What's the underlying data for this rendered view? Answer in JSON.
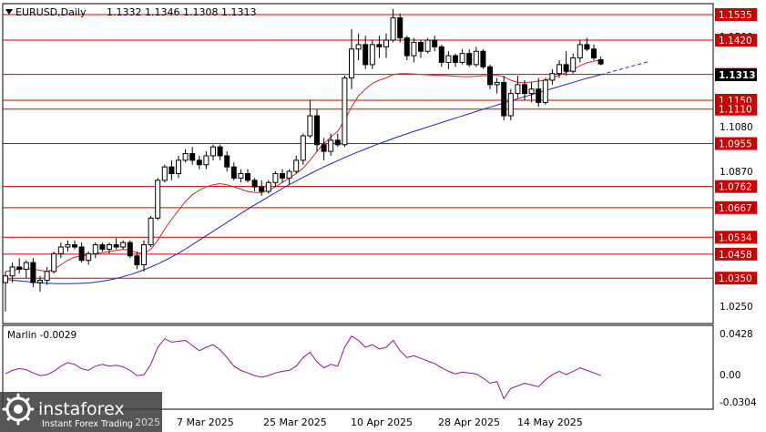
{
  "header": {
    "symbol": "EURUSD,Daily",
    "ohlc": "1.1332 1.1346 1.1308 1.1313"
  },
  "colors": {
    "level_line": "#d10000",
    "level_tag": "#d10000",
    "price_tag": "#000000",
    "ma_slow": "#1f2aa8",
    "ma_fast": "#cc2d2d",
    "oscillator": "#8c1a8c",
    "candle": "#000000",
    "grid_frame": "#000000"
  },
  "price_axis": {
    "ticks": [
      "1.1500",
      "1.1080",
      "1.0870",
      "1.0250"
    ]
  },
  "levels": [
    "1.1535",
    "1.1420",
    "1.1266",
    "1.1150",
    "1.1110",
    "1.0955",
    "1.0762",
    "1.0667",
    "1.0534",
    "1.0458",
    "1.0350"
  ],
  "current_price": "1.1313",
  "date_axis": {
    "labels": [
      "7 Mar 2025",
      "25 Mar 2025",
      "10 Apr 2025",
      "28 Apr 2025",
      "14 May 2025"
    ]
  },
  "oscillator": {
    "label": "Marlin -0.0029",
    "ticks": [
      "0.0428",
      "0.00",
      "-0.0304"
    ]
  },
  "watermark": {
    "brand": "instaforex",
    "tagline": "Instant Forex Trading",
    "partial_text": "2025"
  },
  "chart_data": {
    "type": "candlestick",
    "title": "EURUSD,Daily",
    "ylim": [
      1.015,
      1.158
    ],
    "candles": [
      [
        1.033,
        1.038,
        1.02,
        1.036
      ],
      [
        1.036,
        1.042,
        1.033,
        1.04
      ],
      [
        1.04,
        1.044,
        1.037,
        1.039
      ],
      [
        1.039,
        1.043,
        1.035,
        1.042
      ],
      [
        1.042,
        1.044,
        1.031,
        1.033
      ],
      [
        1.033,
        1.036,
        1.029,
        1.034
      ],
      [
        1.034,
        1.04,
        1.032,
        1.038
      ],
      [
        1.038,
        1.047,
        1.037,
        1.046
      ],
      [
        1.046,
        1.051,
        1.044,
        1.049
      ],
      [
        1.049,
        1.052,
        1.047,
        1.05
      ],
      [
        1.05,
        1.052,
        1.048,
        1.049
      ],
      [
        1.049,
        1.051,
        1.042,
        1.043
      ],
      [
        1.043,
        1.047,
        1.041,
        1.046
      ],
      [
        1.046,
        1.051,
        1.044,
        1.05
      ],
      [
        1.05,
        1.051,
        1.047,
        1.048
      ],
      [
        1.048,
        1.051,
        1.046,
        1.05
      ],
      [
        1.05,
        1.053,
        1.048,
        1.049
      ],
      [
        1.049,
        1.052,
        1.048,
        1.051
      ],
      [
        1.051,
        1.052,
        1.044,
        1.045
      ],
      [
        1.045,
        1.047,
        1.039,
        1.041
      ],
      [
        1.041,
        1.052,
        1.038,
        1.05
      ],
      [
        1.05,
        1.063,
        1.049,
        1.062
      ],
      [
        1.062,
        1.08,
        1.061,
        1.079
      ],
      [
        1.079,
        1.086,
        1.078,
        1.085
      ],
      [
        1.085,
        1.088,
        1.079,
        1.082
      ],
      [
        1.082,
        1.09,
        1.08,
        1.088
      ],
      [
        1.088,
        1.093,
        1.087,
        1.091
      ],
      [
        1.091,
        1.094,
        1.086,
        1.088
      ],
      [
        1.088,
        1.09,
        1.084,
        1.086
      ],
      [
        1.086,
        1.092,
        1.084,
        1.09
      ],
      [
        1.09,
        1.095,
        1.088,
        1.094
      ],
      [
        1.094,
        1.095,
        1.088,
        1.09
      ],
      [
        1.09,
        1.092,
        1.083,
        1.085
      ],
      [
        1.085,
        1.087,
        1.079,
        1.08
      ],
      [
        1.08,
        1.084,
        1.078,
        1.082
      ],
      [
        1.082,
        1.084,
        1.078,
        1.079
      ],
      [
        1.079,
        1.08,
        1.074,
        1.076
      ],
      [
        1.076,
        1.079,
        1.072,
        1.074
      ],
      [
        1.074,
        1.079,
        1.073,
        1.078
      ],
      [
        1.078,
        1.083,
        1.076,
        1.082
      ],
      [
        1.082,
        1.084,
        1.078,
        1.08
      ],
      [
        1.08,
        1.084,
        1.077,
        1.083
      ],
      [
        1.083,
        1.09,
        1.082,
        1.088
      ],
      [
        1.088,
        1.1,
        1.086,
        1.099
      ],
      [
        1.099,
        1.115,
        1.098,
        1.108
      ],
      [
        1.108,
        1.111,
        1.092,
        1.095
      ],
      [
        1.095,
        1.098,
        1.088,
        1.092
      ],
      [
        1.092,
        1.1,
        1.09,
        1.097
      ],
      [
        1.097,
        1.1,
        1.094,
        1.095
      ],
      [
        1.095,
        1.126,
        1.094,
        1.125
      ],
      [
        1.125,
        1.147,
        1.12,
        1.138
      ],
      [
        1.138,
        1.145,
        1.133,
        1.14
      ],
      [
        1.14,
        1.144,
        1.129,
        1.131
      ],
      [
        1.131,
        1.142,
        1.129,
        1.14
      ],
      [
        1.14,
        1.144,
        1.134,
        1.139
      ],
      [
        1.139,
        1.145,
        1.134,
        1.142
      ],
      [
        1.142,
        1.156,
        1.141,
        1.152
      ],
      [
        1.152,
        1.154,
        1.141,
        1.143
      ],
      [
        1.143,
        1.144,
        1.133,
        1.135
      ],
      [
        1.135,
        1.143,
        1.132,
        1.141
      ],
      [
        1.141,
        1.142,
        1.134,
        1.137
      ],
      [
        1.137,
        1.143,
        1.136,
        1.142
      ],
      [
        1.142,
        1.144,
        1.137,
        1.139
      ],
      [
        1.139,
        1.14,
        1.13,
        1.132
      ],
      [
        1.132,
        1.137,
        1.129,
        1.135
      ],
      [
        1.135,
        1.136,
        1.13,
        1.132
      ],
      [
        1.132,
        1.138,
        1.131,
        1.136
      ],
      [
        1.136,
        1.138,
        1.13,
        1.131
      ],
      [
        1.131,
        1.139,
        1.13,
        1.137
      ],
      [
        1.137,
        1.138,
        1.129,
        1.13
      ],
      [
        1.13,
        1.131,
        1.12,
        1.122
      ],
      [
        1.122,
        1.125,
        1.118,
        1.123
      ],
      [
        1.123,
        1.126,
        1.106,
        1.108
      ],
      [
        1.108,
        1.12,
        1.106,
        1.118
      ],
      [
        1.118,
        1.126,
        1.116,
        1.122
      ],
      [
        1.122,
        1.124,
        1.115,
        1.118
      ],
      [
        1.118,
        1.123,
        1.114,
        1.12
      ],
      [
        1.12,
        1.125,
        1.112,
        1.114
      ],
      [
        1.114,
        1.125,
        1.113,
        1.124
      ],
      [
        1.124,
        1.129,
        1.122,
        1.127
      ],
      [
        1.127,
        1.133,
        1.125,
        1.131
      ],
      [
        1.131,
        1.137,
        1.126,
        1.128
      ],
      [
        1.128,
        1.136,
        1.127,
        1.134
      ],
      [
        1.134,
        1.142,
        1.132,
        1.14
      ],
      [
        1.14,
        1.143,
        1.137,
        1.138
      ],
      [
        1.138,
        1.14,
        1.133,
        1.134
      ],
      [
        1.1332,
        1.1346,
        1.1308,
        1.1313
      ]
    ],
    "ma_slow": [
      1.0345,
      1.034,
      1.0336,
      1.0332,
      1.0328,
      1.0326,
      1.0325,
      1.0325,
      1.0326,
      1.0328,
      1.0332,
      1.0338,
      1.0346,
      1.0356,
      1.0368,
      1.0382,
      1.0398,
      1.0416,
      1.0436,
      1.0458,
      1.0482,
      1.0508,
      1.0534,
      1.056,
      1.0586,
      1.0612,
      1.0638,
      1.0664,
      1.0688,
      1.0712,
      1.0736,
      1.076,
      1.0782,
      1.0803,
      1.0824,
      1.0844,
      1.0863,
      1.0881,
      1.0899,
      1.0916,
      1.0932,
      1.0948,
      1.0963,
      1.0978,
      1.0992,
      1.1006,
      1.1019,
      1.1032,
      1.1045,
      1.1058,
      1.1071,
      1.1084,
      1.1097,
      1.111,
      1.1122,
      1.1135,
      1.1147,
      1.1159,
      1.1171,
      1.1183,
      1.1195,
      1.1207,
      1.1219,
      1.1231,
      1.1243,
      1.1254,
      1.1265
    ],
    "ma_fast": [
      1.038,
      1.0385,
      1.039,
      1.0395,
      1.039,
      1.0385,
      1.038,
      1.039,
      1.041,
      1.043,
      1.0445,
      1.045,
      1.0455,
      1.046,
      1.0465,
      1.047,
      1.0475,
      1.048,
      1.0475,
      1.0465,
      1.046,
      1.048,
      1.052,
      1.057,
      1.0615,
      1.0655,
      1.0695,
      1.0725,
      1.0745,
      1.076,
      1.077,
      1.0775,
      1.077,
      1.076,
      1.075,
      1.074,
      1.0735,
      1.0735,
      1.0745,
      1.076,
      1.078,
      1.08,
      1.082,
      1.0845,
      1.088,
      1.092,
      1.0955,
      1.0985,
      1.101,
      1.106,
      1.112,
      1.117,
      1.12,
      1.1225,
      1.124,
      1.125,
      1.1265,
      1.127,
      1.127,
      1.1268,
      1.1266,
      1.1264,
      1.1262,
      1.1262,
      1.126,
      1.1258,
      1.1256,
      1.1256,
      1.1258,
      1.126,
      1.126,
      1.1262,
      1.1255,
      1.124,
      1.123,
      1.1228,
      1.1232,
      1.1236,
      1.124,
      1.125,
      1.1262,
      1.1275,
      1.1288,
      1.1305,
      1.1318,
      1.1326,
      1.133
    ],
    "oscillator_values": [
      -0.001,
      0.003,
      0.005,
      0.004,
      0.0,
      -0.003,
      -0.002,
      0.002,
      0.008,
      0.012,
      0.01,
      0.005,
      0.003,
      0.008,
      0.01,
      0.008,
      0.009,
      0.007,
      0.003,
      -0.003,
      -0.002,
      0.01,
      0.03,
      0.04,
      0.036,
      0.037,
      0.038,
      0.032,
      0.026,
      0.03,
      0.033,
      0.027,
      0.018,
      0.008,
      0.003,
      0.0,
      -0.003,
      -0.005,
      -0.003,
      0.0,
      0.002,
      0.003,
      0.008,
      0.018,
      0.024,
      0.013,
      0.006,
      0.01,
      0.008,
      0.03,
      0.043,
      0.038,
      0.03,
      0.033,
      0.028,
      0.03,
      0.038,
      0.026,
      0.018,
      0.02,
      0.017,
      0.014,
      0.011,
      0.006,
      0.002,
      -0.001,
      0.001,
      0.0,
      -0.001,
      -0.006,
      -0.012,
      -0.01,
      -0.03,
      -0.018,
      -0.015,
      -0.012,
      -0.014,
      -0.016,
      -0.008,
      -0.002,
      0.002,
      -0.002,
      0.002,
      0.006,
      0.003,
      0.0,
      -0.0029
    ],
    "osc_ylim": [
      -0.038,
      0.047
    ]
  }
}
